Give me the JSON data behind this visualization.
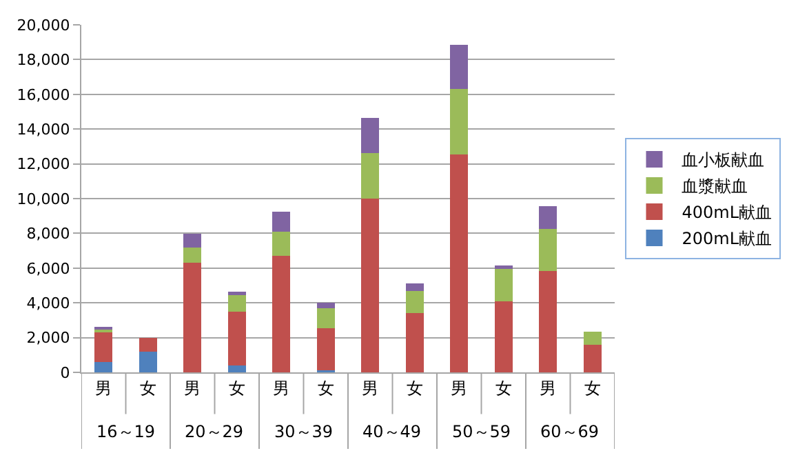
{
  "chart_data": {
    "type": "bar",
    "stacked": true,
    "categories": [
      "男",
      "女",
      "男",
      "女",
      "男",
      "女",
      "男",
      "女",
      "男",
      "女",
      "男",
      "女"
    ],
    "annotations": [
      "16～19",
      "20～29",
      "30～39",
      "40～49",
      "50～59",
      "60～69"
    ],
    "series": [
      {
        "name": "200mL献血",
        "color": "#4f81bd",
        "values": [
          600,
          1200,
          0,
          400,
          0,
          100,
          0,
          0,
          0,
          0,
          0,
          0
        ]
      },
      {
        "name": "400mL献血",
        "color": "#c0504d",
        "values": [
          1750,
          800,
          6300,
          3100,
          6700,
          2450,
          10000,
          3400,
          12550,
          4100,
          5850,
          1600
        ]
      },
      {
        "name": "血漿献血",
        "color": "#9bbb59",
        "values": [
          150,
          null,
          870,
          950,
          1400,
          1150,
          2600,
          1300,
          3750,
          1850,
          2400,
          750
        ]
      },
      {
        "name": "血小板献血",
        "color": "#8064a2",
        "values": [
          100,
          null,
          800,
          200,
          1150,
          300,
          2050,
          400,
          2550,
          200,
          1300,
          0
        ]
      }
    ],
    "ylim": [
      0,
      20000
    ],
    "yticks": [
      {
        "value": 0,
        "label": "0"
      },
      {
        "value": 2000,
        "label": "2,000"
      },
      {
        "value": 4000,
        "label": "4,000"
      },
      {
        "value": 6000,
        "label": "6,000"
      },
      {
        "value": 8000,
        "label": "8,000"
      },
      {
        "value": 10000,
        "label": "10,000"
      },
      {
        "value": 12000,
        "label": "12,000"
      },
      {
        "value": 14000,
        "label": "14,000"
      },
      {
        "value": 16000,
        "label": "16,000"
      },
      {
        "value": 18000,
        "label": "18,000"
      },
      {
        "value": 20000,
        "label": "20,000"
      }
    ],
    "grid": "y",
    "legend": "right"
  }
}
